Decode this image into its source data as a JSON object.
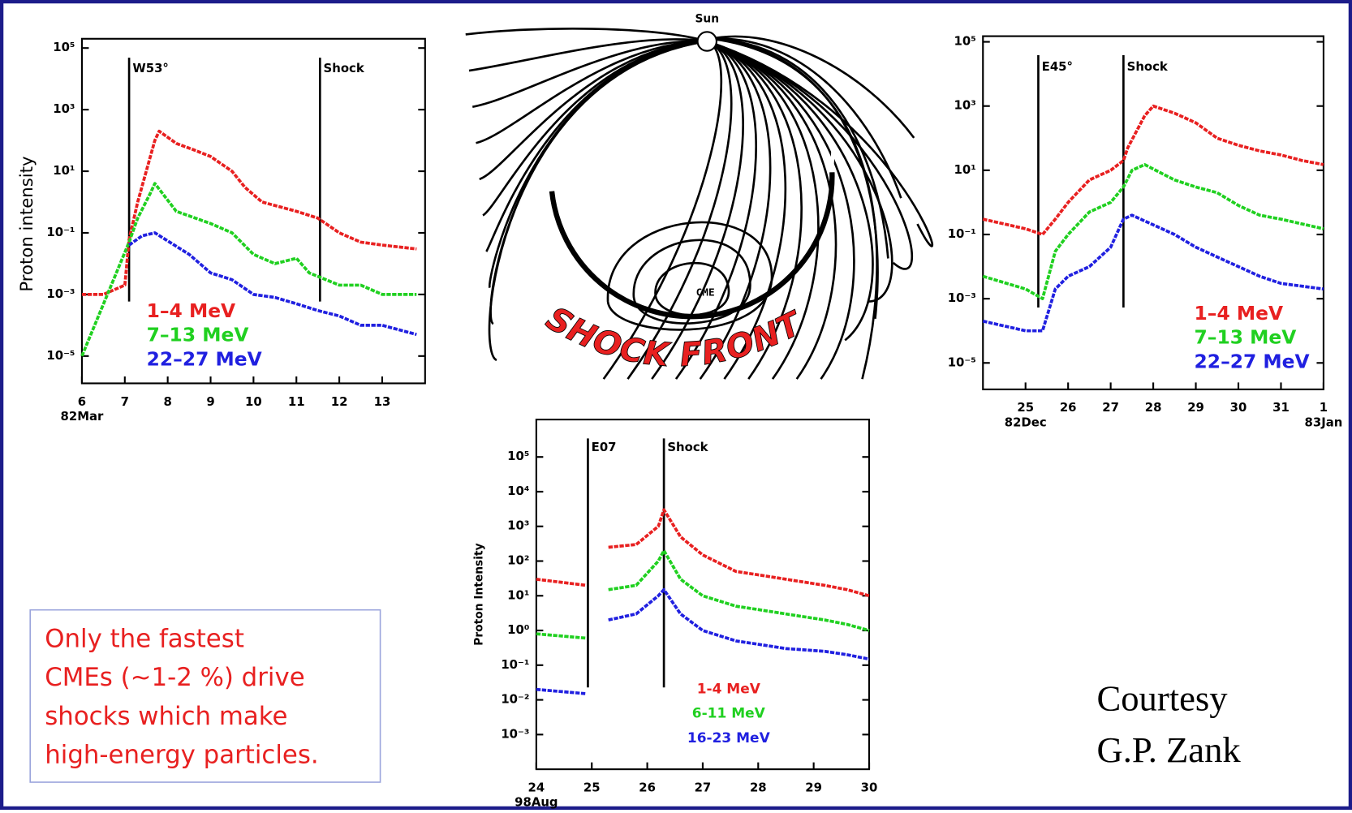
{
  "chart_data": [
    {
      "type": "line",
      "log_y": true,
      "y_label": "Proton intensity",
      "xlim": [
        6,
        14
      ],
      "xticks": [
        6,
        7,
        8,
        9,
        10,
        11,
        12,
        13
      ],
      "x_sublabels": [
        {
          "value": 6,
          "label": "82Mar"
        }
      ],
      "ylim": [
        1.3e-06,
        200000
      ],
      "yticks": [
        {
          "value": 100000,
          "label": "10⁵"
        },
        {
          "value": 1000,
          "label": "10³"
        },
        {
          "value": 10,
          "label": "10¹"
        },
        {
          "value": 0.1,
          "label": "10⁻¹"
        },
        {
          "value": 0.001,
          "label": "10⁻³"
        },
        {
          "value": 1e-05,
          "label": "10⁻⁵"
        }
      ],
      "annotations": [
        {
          "x": 7.1,
          "label": "W53°"
        },
        {
          "x": 11.55,
          "label": "Shock"
        }
      ],
      "series": [
        {
          "name": "1–4 MeV",
          "color": "#e82020",
          "x": [
            6.0,
            6.5,
            7.0,
            7.1,
            7.3,
            7.5,
            7.7,
            7.8,
            8.2,
            8.6,
            9.0,
            9.5,
            9.8,
            10.2,
            11.0,
            11.5,
            12.0,
            12.5,
            13.0,
            13.8
          ],
          "values": [
            0.001,
            0.001,
            0.002,
            0.06,
            1,
            10,
            100,
            200,
            80,
            50,
            30,
            10,
            3,
            1,
            0.5,
            0.3,
            0.1,
            0.05,
            0.04,
            0.03
          ]
        },
        {
          "name": "7–13 MeV",
          "color": "#20d020",
          "x": [
            6.0,
            7.1,
            7.3,
            7.6,
            7.7,
            8.2,
            9.0,
            9.5,
            10.0,
            10.5,
            11.0,
            11.3,
            12.0,
            12.5,
            13.0,
            13.8
          ],
          "values": [
            1e-05,
            0.05,
            0.3,
            2,
            4,
            0.5,
            0.2,
            0.1,
            0.02,
            0.01,
            0.015,
            0.005,
            0.002,
            0.002,
            0.001,
            0.001
          ]
        },
        {
          "name": "22–27 MeV",
          "color": "#2020e0",
          "x": [
            7.1,
            7.4,
            7.7,
            8.5,
            9.0,
            9.5,
            10.0,
            10.5,
            11.0,
            11.5,
            12.0,
            12.5,
            13.0,
            13.8
          ],
          "values": [
            0.04,
            0.08,
            0.1,
            0.02,
            0.005,
            0.003,
            0.001,
            0.0008,
            0.0005,
            0.0003,
            0.0002,
            0.0001,
            0.0001,
            5e-05
          ]
        }
      ]
    },
    {
      "type": "line",
      "log_y": true,
      "xlim": [
        24,
        32
      ],
      "xticks": [
        25,
        26,
        27,
        28,
        29,
        30,
        31,
        {
          "value": 32,
          "label": "1"
        }
      ],
      "x_sublabels": [
        {
          "value": 25,
          "label": "82Dec"
        },
        {
          "value": 32,
          "label": "83Jan"
        }
      ],
      "ylim": [
        1.5e-06,
        150000
      ],
      "yticks": [
        {
          "value": 100000,
          "label": "10⁵"
        },
        {
          "value": 1000,
          "label": "10³"
        },
        {
          "value": 10,
          "label": "10¹"
        },
        {
          "value": 0.1,
          "label": "10⁻¹"
        },
        {
          "value": 0.001,
          "label": "10⁻³"
        },
        {
          "value": 1e-05,
          "label": "10⁻⁵"
        }
      ],
      "annotations": [
        {
          "x": 25.3,
          "label": "E45°"
        },
        {
          "x": 27.3,
          "label": "Shock"
        }
      ],
      "series": [
        {
          "name": "1–4 MeV",
          "color": "#e82020",
          "x": [
            24,
            25,
            25.4,
            25.7,
            26,
            26.5,
            27,
            27.3,
            27.4,
            27.8,
            28,
            28.5,
            29,
            29.5,
            30,
            30.5,
            31,
            31.5,
            32
          ],
          "values": [
            0.3,
            0.15,
            0.1,
            0.3,
            1,
            5,
            10,
            20,
            50,
            500,
            1000,
            600,
            300,
            100,
            60,
            40,
            30,
            20,
            15
          ]
        },
        {
          "name": "7–13 MeV",
          "color": "#20d020",
          "x": [
            24,
            25,
            25.4,
            25.7,
            26,
            26.5,
            27,
            27.3,
            27.5,
            27.8,
            28.5,
            29,
            29.5,
            30,
            30.5,
            31,
            32
          ],
          "values": [
            0.005,
            0.002,
            0.001,
            0.03,
            0.1,
            0.5,
            1,
            3,
            10,
            15,
            5,
            3,
            2,
            0.8,
            0.4,
            0.3,
            0.15
          ]
        },
        {
          "name": "22–27 MeV",
          "color": "#2020e0",
          "x": [
            24,
            25,
            25.4,
            25.7,
            26,
            26.5,
            27,
            27.3,
            27.5,
            28,
            28.5,
            29,
            29.5,
            30,
            30.5,
            31,
            32
          ],
          "values": [
            0.0002,
            0.0001,
            0.0001,
            0.002,
            0.005,
            0.01,
            0.04,
            0.3,
            0.4,
            0.2,
            0.1,
            0.04,
            0.02,
            0.01,
            0.005,
            0.003,
            0.002
          ]
        }
      ]
    },
    {
      "type": "line",
      "log_y": true,
      "y_label": "Proton Intensity",
      "xlim": [
        24,
        30
      ],
      "xticks": [
        24,
        25,
        26,
        27,
        28,
        29,
        30
      ],
      "x_sublabels": [
        {
          "value": 24,
          "label": "98Aug"
        }
      ],
      "ylim": [
        0.0001,
        1200000
      ],
      "yticks": [
        {
          "value": 100000,
          "label": "10⁵"
        },
        {
          "value": 10000,
          "label": "10⁴"
        },
        {
          "value": 1000,
          "label": "10³"
        },
        {
          "value": 100,
          "label": "10²"
        },
        {
          "value": 10,
          "label": "10¹"
        },
        {
          "value": 1,
          "label": "10⁰"
        },
        {
          "value": 0.1,
          "label": "10⁻¹"
        },
        {
          "value": 0.01,
          "label": "10⁻²"
        },
        {
          "value": 0.001,
          "label": "10⁻³"
        }
      ],
      "annotations": [
        {
          "x": 24.93,
          "label": "E07"
        },
        {
          "x": 26.3,
          "label": "Shock"
        }
      ],
      "series": [
        {
          "name": "1-4 MeV",
          "color": "#e82020",
          "x": [
            24,
            24.9,
            25.1,
            25.3,
            25.8,
            26.2,
            26.3,
            26.6,
            27,
            27.6,
            28,
            28.5,
            29.2,
            29.6,
            30
          ],
          "values": [
            30,
            20,
            null,
            250,
            300,
            1000,
            3000,
            500,
            150,
            50,
            40,
            30,
            20,
            15,
            10
          ]
        },
        {
          "name": "6-11 MeV",
          "color": "#20d020",
          "x": [
            24,
            24.9,
            25.1,
            25.3,
            25.8,
            26.2,
            26.3,
            26.6,
            27,
            27.6,
            28,
            28.5,
            29.2,
            29.6,
            30
          ],
          "values": [
            0.8,
            0.6,
            null,
            15,
            20,
            100,
            200,
            30,
            10,
            5,
            4,
            3,
            2,
            1.5,
            1
          ]
        },
        {
          "name": "16-23 MeV",
          "color": "#2020e0",
          "x": [
            24,
            24.9,
            25.1,
            25.3,
            25.8,
            26.2,
            26.3,
            26.6,
            27,
            27.6,
            28,
            28.5,
            29.2,
            29.6,
            30
          ],
          "values": [
            0.02,
            0.015,
            null,
            2,
            3,
            10,
            15,
            3,
            1,
            0.5,
            0.4,
            0.3,
            0.25,
            0.2,
            0.15
          ]
        }
      ]
    }
  ],
  "diagram": {
    "sun": "Sun",
    "cme": "CME",
    "shock": "SHOCK FRONT"
  },
  "note": {
    "lines": [
      "Only the fastest",
      "CMEs (~1-2 %) drive",
      "shocks which make",
      "high-energy particles."
    ]
  },
  "credit": {
    "lines": [
      "Courtesy",
      "G.P. Zank"
    ]
  }
}
